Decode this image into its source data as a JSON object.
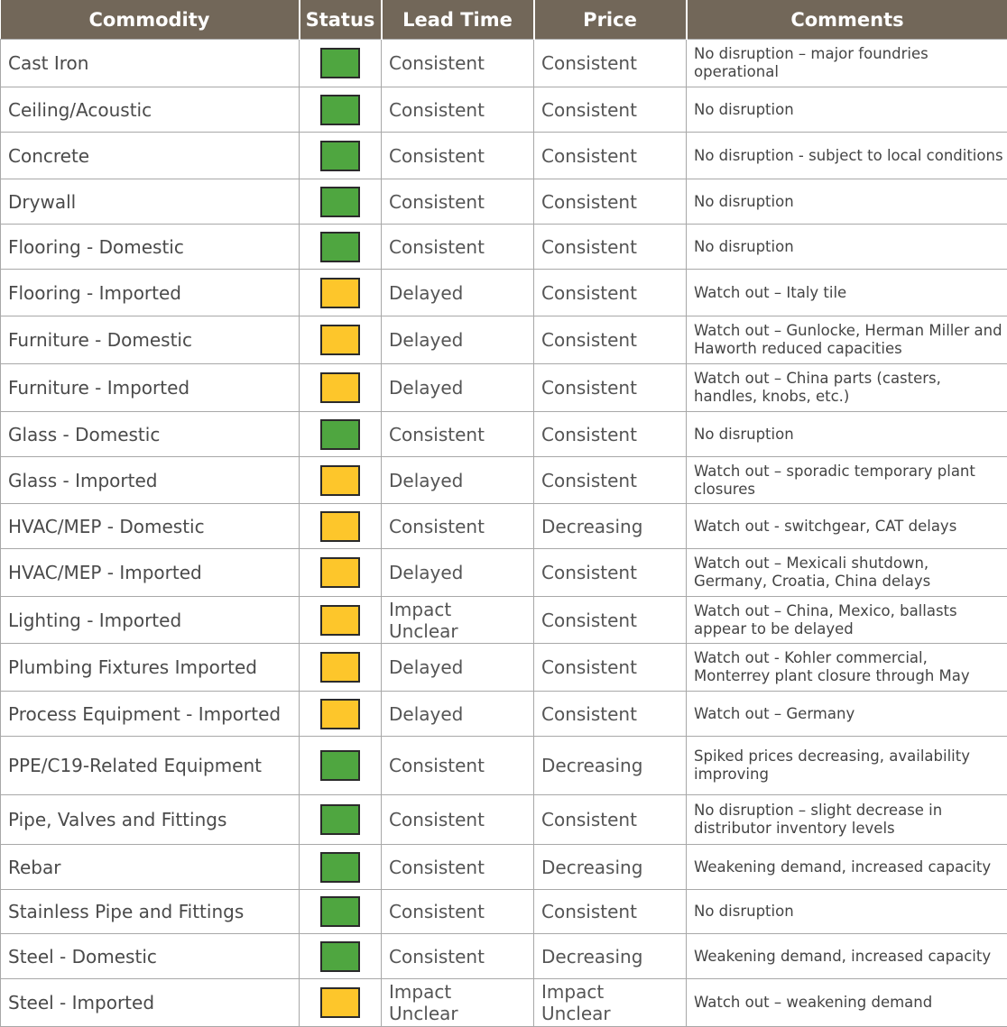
{
  "table": {
    "header": [
      "Commodity",
      "Status",
      "Lead Time",
      "Price",
      "Comments"
    ],
    "rows": [
      {
        "commodity": "Cast Iron",
        "status_color": "#4fa640",
        "lead_time": "Consistent",
        "price": "Consistent",
        "comments": "No disruption – major foundries operational"
      },
      {
        "commodity": "Ceiling/Acoustic",
        "status_color": "#4fa640",
        "lead_time": "Consistent",
        "price": "Consistent",
        "comments": "No disruption"
      },
      {
        "commodity": "Concrete",
        "status_color": "#4fa640",
        "lead_time": "Consistent",
        "price": "Consistent",
        "comments": "No disruption - subject to local conditions"
      },
      {
        "commodity": "Drywall",
        "status_color": "#4fa640",
        "lead_time": "Consistent",
        "price": "Consistent",
        "comments": "No disruption"
      },
      {
        "commodity": "Flooring - Domestic",
        "status_color": "#4fa640",
        "lead_time": "Consistent",
        "price": "Consistent",
        "comments": "No disruption"
      },
      {
        "commodity": "Flooring - Imported",
        "status_color": "#fdc62b",
        "lead_time": "Delayed",
        "price": "Consistent",
        "comments": "Watch out – Italy tile"
      },
      {
        "commodity": "Furniture - Domestic",
        "status_color": "#fdc62b",
        "lead_time": "Delayed",
        "price": "Consistent",
        "comments": "Watch out – Gunlocke, Herman Miller and Haworth reduced capacities"
      },
      {
        "commodity": "Furniture - Imported",
        "status_color": "#fdc62b",
        "lead_time": "Delayed",
        "price": "Consistent",
        "comments": "Watch out – China parts (casters, handles, knobs, etc.)"
      },
      {
        "commodity": "Glass - Domestic",
        "status_color": "#4fa640",
        "lead_time": "Consistent",
        "price": "Consistent",
        "comments": "No disruption"
      },
      {
        "commodity": "Glass - Imported",
        "status_color": "#fdc62b",
        "lead_time": "Delayed",
        "price": "Consistent",
        "comments": "Watch out – sporadic temporary plant closures"
      },
      {
        "commodity": "HVAC/MEP - Domestic",
        "status_color": "#fdc62b",
        "lead_time": "Consistent",
        "price": "Decreasing",
        "comments": "Watch out - switchgear, CAT delays"
      },
      {
        "commodity": "HVAC/MEP - Imported",
        "status_color": "#fdc62b",
        "lead_time": "Delayed",
        "price": "Consistent",
        "comments": "Watch out – Mexicali shutdown, Germany, Croatia, China delays"
      },
      {
        "commodity": "Lighting - Imported",
        "status_color": "#fdc62b",
        "lead_time": "Impact Unclear",
        "price": "Consistent",
        "comments": "Watch out – China, Mexico, ballasts appear to be delayed"
      },
      {
        "commodity": "Plumbing Fixtures Imported",
        "status_color": "#fdc62b",
        "lead_time": "Delayed",
        "price": "Consistent",
        "comments": "Watch out - Kohler commercial, Monterrey plant closure through May"
      },
      {
        "commodity": "Process Equipment - Imported",
        "status_color": "#fdc62b",
        "lead_time": "Delayed",
        "price": "Consistent",
        "comments": "Watch out – Germany"
      },
      {
        "commodity": "PPE/C19-Related Equipment",
        "status_color": "#4fa640",
        "lead_time": "Consistent",
        "price": "Decreasing",
        "comments": "Spiked prices decreasing, availability improving"
      },
      {
        "commodity": "Pipe, Valves and Fittings",
        "status_color": "#4fa640",
        "lead_time": "Consistent",
        "price": "Consistent",
        "comments": "No disruption – slight decrease in distributor inventory levels"
      },
      {
        "commodity": "Rebar",
        "status_color": "#4fa640",
        "lead_time": "Consistent",
        "price": "Decreasing",
        "comments": "Weakening demand, increased capacity"
      },
      {
        "commodity": "Stainless Pipe and Fittings",
        "status_color": "#4fa640",
        "lead_time": "Consistent",
        "price": "Consistent",
        "comments": "No disruption"
      },
      {
        "commodity": "Steel - Domestic",
        "status_color": "#4fa640",
        "lead_time": "Consistent",
        "price": "Decreasing",
        "comments": "Weakening demand, increased capacity"
      },
      {
        "commodity": "Steel - Imported",
        "status_color": "#fdc62b",
        "lead_time": "Impact Unclear",
        "price": "Impact Unclear",
        "comments": "Watch out – weakening demand"
      }
    ]
  }
}
